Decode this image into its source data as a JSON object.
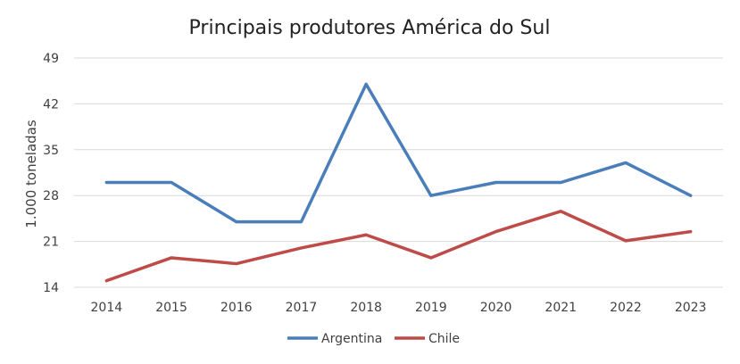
{
  "chart_data": {
    "type": "line",
    "title": "Principais produtores América do Sul",
    "xlabel": "",
    "ylabel": "1.000 toneladas",
    "categories": [
      "2014",
      "2015",
      "2016",
      "2017",
      "2018",
      "2019",
      "2020",
      "2021",
      "2022",
      "2023"
    ],
    "yticks": [
      14,
      21,
      28,
      35,
      42,
      49
    ],
    "ylim": [
      14,
      49
    ],
    "grid": true,
    "legend_position": "bottom",
    "series": [
      {
        "name": "Argentina",
        "color": "#4a7ebb",
        "values": [
          30,
          30,
          24,
          24,
          45,
          28,
          30,
          30,
          33,
          28
        ]
      },
      {
        "name": "Chile",
        "color": "#be4b48",
        "values": [
          15,
          18.5,
          17.6,
          20,
          22,
          18.5,
          22.5,
          25.6,
          21.1,
          22.5
        ]
      }
    ]
  }
}
